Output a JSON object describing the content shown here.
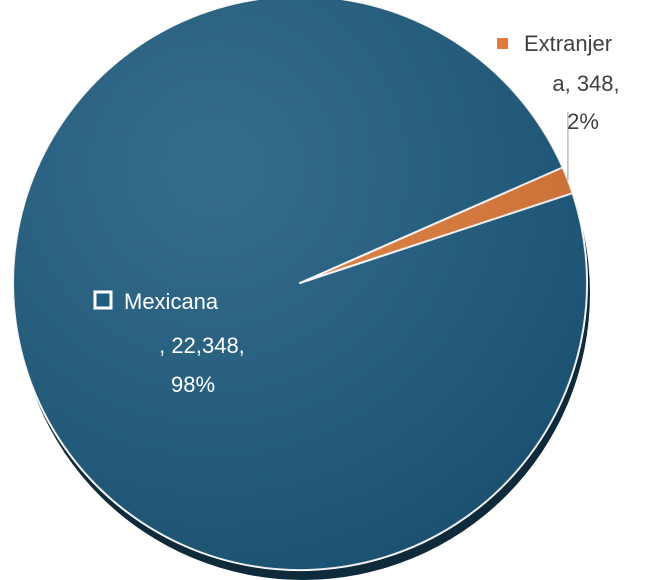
{
  "chart_data": {
    "type": "pie",
    "slices": [
      {
        "label": "Mexicana",
        "value": 22348,
        "value_text": "22,348",
        "percent_text": "98%",
        "color": "#1e5c80"
      },
      {
        "label": "Extranjera",
        "value": 348,
        "value_text": "348",
        "percent_text": "2%",
        "color": "#e07b39"
      }
    ],
    "labels": {
      "mexicana": {
        "line1": "Mexicana",
        "line2": ", 22,348,",
        "line3": "98%"
      },
      "extranjera": {
        "line1": "Extranjer",
        "line2": "a, 348,",
        "line3": "2%"
      }
    }
  }
}
